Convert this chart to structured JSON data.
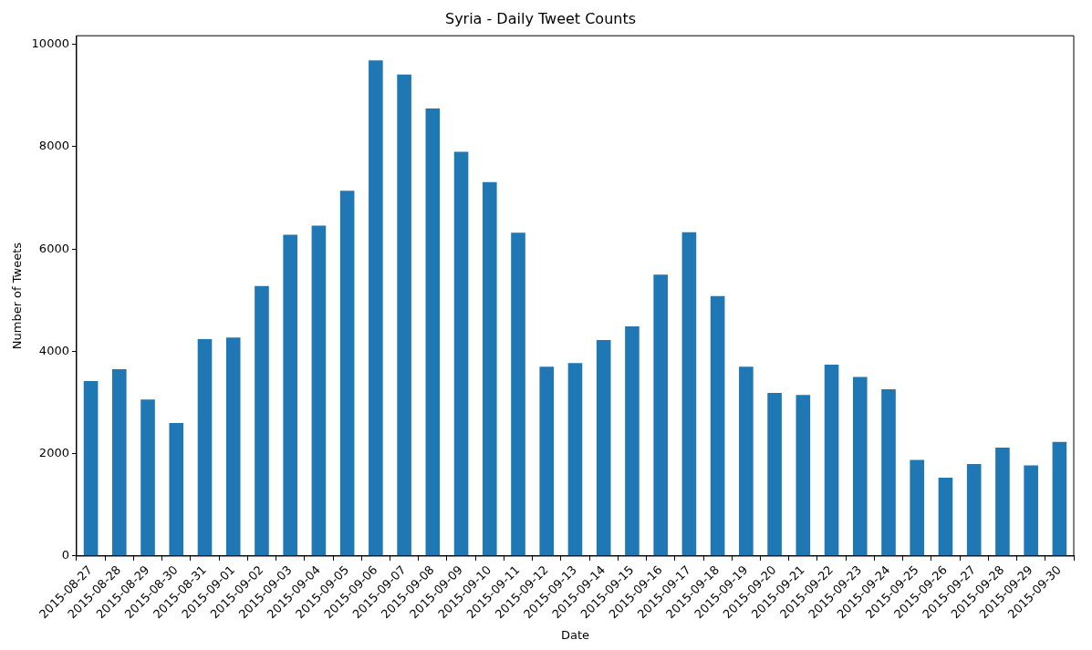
{
  "chart_data": {
    "type": "bar",
    "title": "Syria - Daily Tweet Counts",
    "xlabel": "Date",
    "ylabel": "Number of Tweets",
    "categories": [
      "2015-08-27",
      "2015-08-28",
      "2015-08-29",
      "2015-08-30",
      "2015-08-31",
      "2015-09-01",
      "2015-09-02",
      "2015-09-03",
      "2015-09-04",
      "2015-09-05",
      "2015-09-06",
      "2015-09-07",
      "2015-09-08",
      "2015-09-09",
      "2015-09-10",
      "2015-09-11",
      "2015-09-12",
      "2015-09-13",
      "2015-09-14",
      "2015-09-15",
      "2015-09-16",
      "2015-09-17",
      "2015-09-18",
      "2015-09-19",
      "2015-09-20",
      "2015-09-21",
      "2015-09-22",
      "2015-09-23",
      "2015-09-24",
      "2015-09-25",
      "2015-09-26",
      "2015-09-27",
      "2015-09-28",
      "2015-09-29",
      "2015-09-30"
    ],
    "values": [
      3420,
      3650,
      3060,
      2600,
      4240,
      4270,
      5280,
      6280,
      6460,
      7140,
      9690,
      9410,
      8750,
      7900,
      7310,
      6320,
      3700,
      3770,
      4220,
      4490,
      5500,
      6330,
      5080,
      3700,
      3190,
      3150,
      3740,
      3500,
      3260,
      1880,
      1530,
      1800,
      2120,
      1770,
      2230
    ],
    "color": "#1f77b4",
    "ylim": [
      0,
      10170
    ],
    "yticks": [
      0,
      2000,
      4000,
      6000,
      8000,
      10000
    ],
    "grid": false,
    "legend": false
  }
}
